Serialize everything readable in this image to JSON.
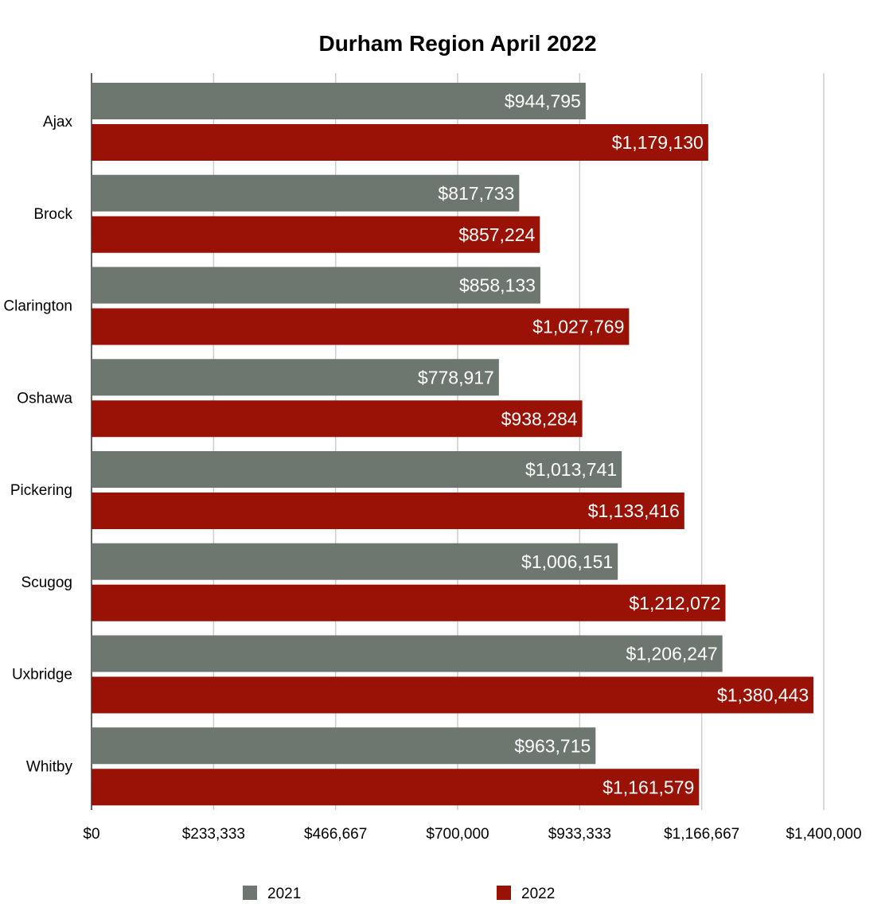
{
  "chart_data": {
    "type": "bar",
    "orientation": "horizontal",
    "title": "Durham Region April 2022",
    "xlabel": "",
    "ylabel": "",
    "categories": [
      "Ajax",
      "Brock",
      "Clarington",
      "Oshawa",
      "Pickering",
      "Scugog",
      "Uxbridge",
      "Whitby"
    ],
    "series": [
      {
        "name": "2021",
        "color": "#6e7670",
        "values": [
          944795,
          817733,
          858133,
          778917,
          1013741,
          1006151,
          1206247,
          963715
        ],
        "labels": [
          "$944,795",
          "$817,733",
          "$858,133",
          "$778,917",
          "$1,013,741",
          "$1,006,151",
          "$1,206,247",
          "$963,715"
        ]
      },
      {
        "name": "2022",
        "color": "#9a1205",
        "values": [
          1179130,
          857224,
          1027769,
          938284,
          1133416,
          1212072,
          1380443,
          1161579
        ],
        "labels": [
          "$1,179,130",
          "$857,224",
          "$1,027,769",
          "$938,284",
          "$1,133,416",
          "$1,212,072",
          "$1,380,443",
          "$1,161,579"
        ]
      }
    ],
    "xlim": [
      0,
      1400000
    ],
    "xticks": [
      0,
      233333,
      466667,
      700000,
      933333,
      1166667,
      1400000
    ],
    "xtick_labels": [
      "$0",
      "$233,333",
      "$466,667",
      "$700,000",
      "$933,333",
      "$1,166,667",
      "$1,400,000"
    ],
    "grid": true,
    "legend": "bottom"
  }
}
